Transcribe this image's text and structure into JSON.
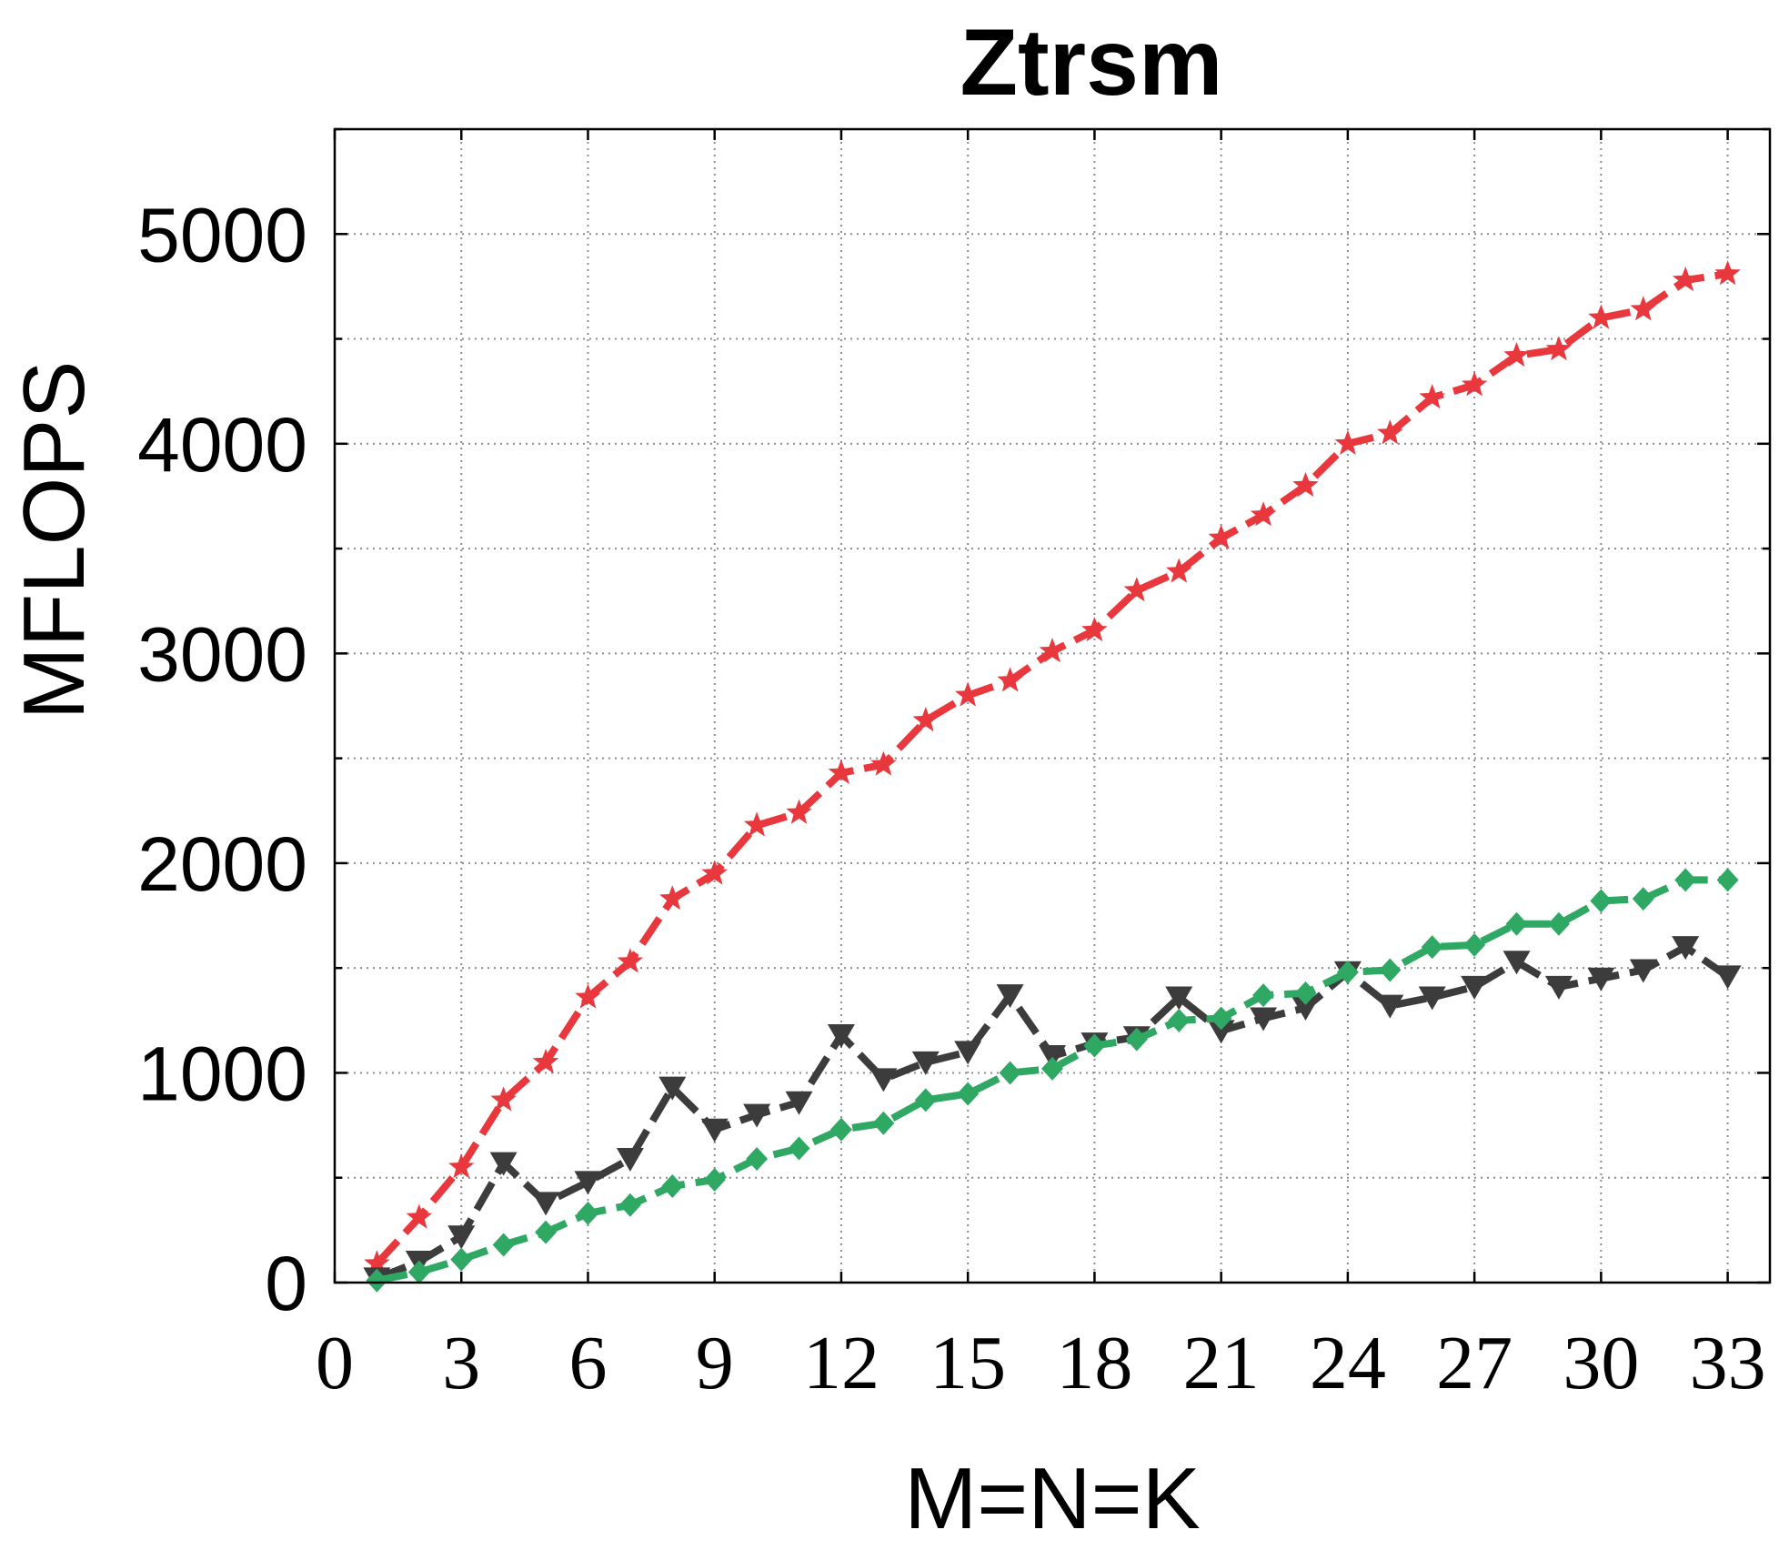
{
  "chart_data": {
    "type": "line",
    "title": "Ztrsm",
    "xlabel": "M=N=K",
    "ylabel": "MFLOPS",
    "xlim": [
      0,
      34
    ],
    "ylim": [
      0,
      5500
    ],
    "xticks": [
      0,
      3,
      6,
      9,
      12,
      15,
      18,
      21,
      24,
      27,
      30,
      33
    ],
    "yticks": [
      0,
      1000,
      2000,
      3000,
      4000,
      5000
    ],
    "grid": true,
    "x": [
      1,
      2,
      3,
      4,
      5,
      6,
      7,
      8,
      9,
      10,
      11,
      12,
      13,
      14,
      15,
      16,
      17,
      18,
      19,
      20,
      21,
      22,
      23,
      24,
      25,
      26,
      27,
      28,
      29,
      30,
      31,
      32,
      33
    ],
    "series": [
      {
        "color": "#e8383d",
        "marker": "star",
        "values": [
          90,
          310,
          550,
          870,
          1050,
          1360,
          1530,
          1830,
          1950,
          2180,
          2240,
          2430,
          2470,
          2680,
          2800,
          2870,
          3010,
          3110,
          3300,
          3390,
          3550,
          3660,
          3800,
          4000,
          4050,
          4220,
          4280,
          4420,
          4450,
          4600,
          4640,
          4780,
          4810
        ]
      },
      {
        "color": "#3c3c3c",
        "marker": "triangle-down",
        "values": [
          20,
          100,
          220,
          570,
          380,
          480,
          590,
          930,
          730,
          800,
          860,
          1180,
          970,
          1050,
          1100,
          1370,
          1080,
          1140,
          1170,
          1360,
          1200,
          1260,
          1310,
          1480,
          1320,
          1360,
          1410,
          1530,
          1410,
          1450,
          1490,
          1600,
          1460
        ]
      },
      {
        "color": "#2fa864",
        "marker": "diamond",
        "values": [
          10,
          50,
          110,
          180,
          240,
          330,
          370,
          460,
          490,
          590,
          640,
          730,
          760,
          870,
          900,
          1000,
          1020,
          1130,
          1160,
          1250,
          1260,
          1370,
          1380,
          1480,
          1490,
          1600,
          1610,
          1710,
          1710,
          1820,
          1830,
          1920,
          1920
        ]
      }
    ]
  }
}
